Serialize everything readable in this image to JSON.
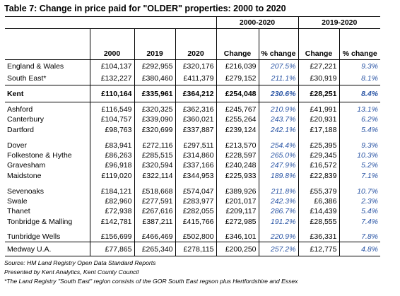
{
  "title": "Table 7: Change in price paid for \"OLDER\" properties: 2000 to 2020",
  "group_headers": [
    "2000-2020",
    "2019-2020"
  ],
  "column_headers": [
    "2000",
    "2019",
    "2020",
    "Change",
    "% change",
    "Change",
    "% change"
  ],
  "rows": [
    {
      "name": "England & Wales",
      "v2000": "£104,137",
      "v2019": "£292,955",
      "v2020": "£320,176",
      "chg": "£216,039",
      "pct": "207.5%",
      "chg2": "£27,221",
      "pct2": "9.3%"
    },
    {
      "name": "South East*",
      "v2000": "£132,227",
      "v2019": "£380,460",
      "v2020": "£411,379",
      "chg": "£279,152",
      "pct": "211.1%",
      "chg2": "£30,919",
      "pct2": "8.1%"
    },
    {
      "name": "Kent",
      "v2000": "£110,164",
      "v2019": "£335,961",
      "v2020": "£364,212",
      "chg": "£254,048",
      "pct": "230.6%",
      "chg2": "£28,251",
      "pct2": "8.4%"
    },
    {
      "name": "Ashford",
      "v2000": "£116,549",
      "v2019": "£320,325",
      "v2020": "£362,316",
      "chg": "£245,767",
      "pct": "210.9%",
      "chg2": "£41,991",
      "pct2": "13.1%"
    },
    {
      "name": "Canterbury",
      "v2000": "£104,757",
      "v2019": "£339,090",
      "v2020": "£360,021",
      "chg": "£255,264",
      "pct": "243.7%",
      "chg2": "£20,931",
      "pct2": "6.2%"
    },
    {
      "name": "Dartford",
      "v2000": "£98,763",
      "v2019": "£320,699",
      "v2020": "£337,887",
      "chg": "£239,124",
      "pct": "242.1%",
      "chg2": "£17,188",
      "pct2": "5.4%"
    },
    {
      "name": "Dover",
      "v2000": "£83,941",
      "v2019": "£272,116",
      "v2020": "£297,511",
      "chg": "£213,570",
      "pct": "254.4%",
      "chg2": "£25,395",
      "pct2": "9.3%"
    },
    {
      "name": "Folkestone & Hythe",
      "v2000": "£86,263",
      "v2019": "£285,515",
      "v2020": "£314,860",
      "chg": "£228,597",
      "pct": "265.0%",
      "chg2": "£29,345",
      "pct2": "10.3%"
    },
    {
      "name": "Gravesham",
      "v2000": "£96,918",
      "v2019": "£320,594",
      "v2020": "£337,166",
      "chg": "£240,248",
      "pct": "247.9%",
      "chg2": "£16,572",
      "pct2": "5.2%"
    },
    {
      "name": "Maidstone",
      "v2000": "£119,020",
      "v2019": "£322,114",
      "v2020": "£344,953",
      "chg": "£225,933",
      "pct": "189.8%",
      "chg2": "£22,839",
      "pct2": "7.1%"
    },
    {
      "name": "Sevenoaks",
      "v2000": "£184,121",
      "v2019": "£518,668",
      "v2020": "£574,047",
      "chg": "£389,926",
      "pct": "211.8%",
      "chg2": "£55,379",
      "pct2": "10.7%"
    },
    {
      "name": "Swale",
      "v2000": "£82,960",
      "v2019": "£277,591",
      "v2020": "£283,977",
      "chg": "£201,017",
      "pct": "242.3%",
      "chg2": "£6,386",
      "pct2": "2.3%"
    },
    {
      "name": "Thanet",
      "v2000": "£72,938",
      "v2019": "£267,616",
      "v2020": "£282,055",
      "chg": "£209,117",
      "pct": "286.7%",
      "chg2": "£14,439",
      "pct2": "5.4%"
    },
    {
      "name": "Tonbridge & Malling",
      "v2000": "£142,781",
      "v2019": "£387,211",
      "v2020": "£415,766",
      "chg": "£272,985",
      "pct": "191.2%",
      "chg2": "£28,555",
      "pct2": "7.4%"
    },
    {
      "name": "Tunbridge Wells",
      "v2000": "£156,699",
      "v2019": "£466,469",
      "v2020": "£502,800",
      "chg": "£346,101",
      "pct": "220.9%",
      "chg2": "£36,331",
      "pct2": "7.8%"
    },
    {
      "name": "Medway U.A.",
      "v2000": "£77,865",
      "v2019": "£265,340",
      "v2020": "£278,115",
      "chg": "£200,250",
      "pct": "257.2%",
      "chg2": "£12,775",
      "pct2": "4.8%"
    }
  ],
  "notes": {
    "source": "Source: HM Land Registry Open Data Standard Reports",
    "presented": "Presented by Kent Analytics, Kent County Council",
    "footnote": "*The Land Registry \"South East\" region consists of the GOR South East regson plus Hertfordshire and Essex"
  },
  "colors": {
    "percent_text": "#2a55a5",
    "rules": "#000000"
  }
}
